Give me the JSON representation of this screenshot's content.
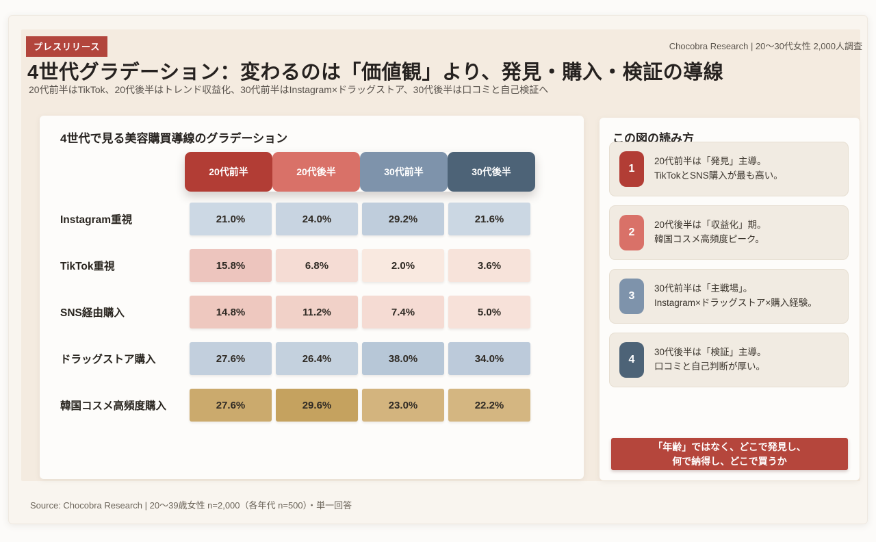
{
  "page": {
    "badge": "プレスリリース",
    "top_credit": "Chocobra Research | 20〜30代女性 2,000人調査",
    "title": "4世代グラデーション：変わるのは「価値観」より、発見・購入・検証の導線",
    "subtitle": "20代前半はTikTok、20代後半はトレンド収益化、30代前半はInstagram×ドラッグストア、30代後半は口コミと自己検証へ",
    "footer_source": "Source: Chocobra Research | 20〜39歳女性 n=2,000（各年代 n=500）・単一回答"
  },
  "chart_data": {
    "type": "heatmap",
    "title": "4世代で見る美容購買導線のグラデーション",
    "value_format": "percent_1dp",
    "legend_position": "none",
    "grid": false,
    "columns": [
      "20代前半",
      "20代後半",
      "30代前半",
      "30代後半"
    ],
    "column_colors": [
      "#b23d35",
      "#d97168",
      "#7e93ab",
      "#4d6377"
    ],
    "rows": [
      {
        "label": "Instagram重視",
        "values": [
          21.0,
          24.0,
          29.2,
          21.6
        ],
        "cell_colors": [
          "#ccd8e4",
          "#c8d4e1",
          "#bfcddc",
          "#cbd7e3"
        ]
      },
      {
        "label": "TikTok重視",
        "values": [
          15.8,
          6.8,
          2.0,
          3.6
        ],
        "cell_colors": [
          "#edc5be",
          "#f5dcd4",
          "#f9e9e0",
          "#f7e3da"
        ]
      },
      {
        "label": "SNS経由購入",
        "values": [
          14.8,
          11.2,
          7.4,
          5.0
        ],
        "cell_colors": [
          "#eec8bf",
          "#f1d1c8",
          "#f5dbd3",
          "#f7e1d9"
        ]
      },
      {
        "label": "ドラッグストア購入",
        "values": [
          27.6,
          26.4,
          38.0,
          34.0
        ],
        "cell_colors": [
          "#c2cfdd",
          "#c4d1de",
          "#b7c7d7",
          "#bccada"
        ]
      },
      {
        "label": "韓国コスメ高頻度購入",
        "values": [
          27.6,
          29.6,
          23.0,
          22.2
        ],
        "cell_colors": [
          "#cbaa6d",
          "#c5a25f",
          "#d3b47e",
          "#d4b681"
        ]
      }
    ]
  },
  "legend_panel": {
    "title": "この図の読み方",
    "notes": [
      {
        "num": "1",
        "color": "#b23d35",
        "line1": "20代前半は「発見」主導。",
        "line2": "TikTokとSNS購入が最も高い。"
      },
      {
        "num": "2",
        "color": "#d97168",
        "line1": "20代後半は「収益化」期。",
        "line2": "韓国コスメ高頻度ピーク。"
      },
      {
        "num": "3",
        "color": "#7e93ab",
        "line1": "30代前半は「主戦場」。",
        "line2": "Instagram×ドラッグストア×購入経験。"
      },
      {
        "num": "4",
        "color": "#4d6377",
        "line1": "30代後半は「検証」主導。",
        "line2": "口コミと自己判断が厚い。"
      }
    ],
    "conclusion_line1": "「年齢」ではなく、どこで発見し、",
    "conclusion_line2": "何で納得し、どこで買うか"
  }
}
